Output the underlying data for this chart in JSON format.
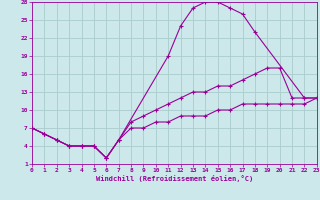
{
  "xlabel": "Windchill (Refroidissement éolien,°C)",
  "bg_color": "#cce8ea",
  "grid_color": "#aacccc",
  "line_color": "#990099",
  "xmin": 0,
  "xmax": 23,
  "ymin": 1,
  "ymax": 28,
  "yticks": [
    1,
    4,
    7,
    10,
    13,
    16,
    19,
    22,
    25,
    28
  ],
  "xticks": [
    0,
    1,
    2,
    3,
    4,
    5,
    6,
    7,
    8,
    9,
    10,
    11,
    12,
    13,
    14,
    15,
    16,
    17,
    18,
    19,
    20,
    21,
    22,
    23
  ],
  "curve1_x": [
    0,
    1,
    2,
    3,
    4,
    5,
    6,
    7,
    11,
    12,
    13,
    14,
    15,
    16,
    17,
    18,
    22,
    23
  ],
  "curve1_y": [
    7,
    6,
    5,
    4,
    4,
    4,
    2,
    5,
    19,
    24,
    27,
    28,
    28,
    27,
    26,
    23,
    12,
    12
  ],
  "curve2_x": [
    0,
    1,
    2,
    3,
    4,
    5,
    6,
    7,
    8,
    9,
    10,
    11,
    12,
    13,
    14,
    15,
    16,
    17,
    18,
    19,
    20,
    21,
    22,
    23
  ],
  "curve2_y": [
    7,
    6,
    5,
    4,
    4,
    4,
    2,
    5,
    8,
    9,
    10,
    11,
    12,
    13,
    13,
    14,
    14,
    15,
    16,
    17,
    17,
    12,
    12,
    12
  ],
  "curve3_x": [
    0,
    1,
    2,
    3,
    4,
    5,
    6,
    7,
    8,
    9,
    10,
    11,
    12,
    13,
    14,
    15,
    16,
    17,
    18,
    19,
    20,
    21,
    22,
    23
  ],
  "curve3_y": [
    7,
    6,
    5,
    4,
    4,
    4,
    2,
    5,
    7,
    7,
    8,
    8,
    9,
    9,
    9,
    10,
    10,
    11,
    11,
    11,
    11,
    11,
    11,
    12
  ]
}
